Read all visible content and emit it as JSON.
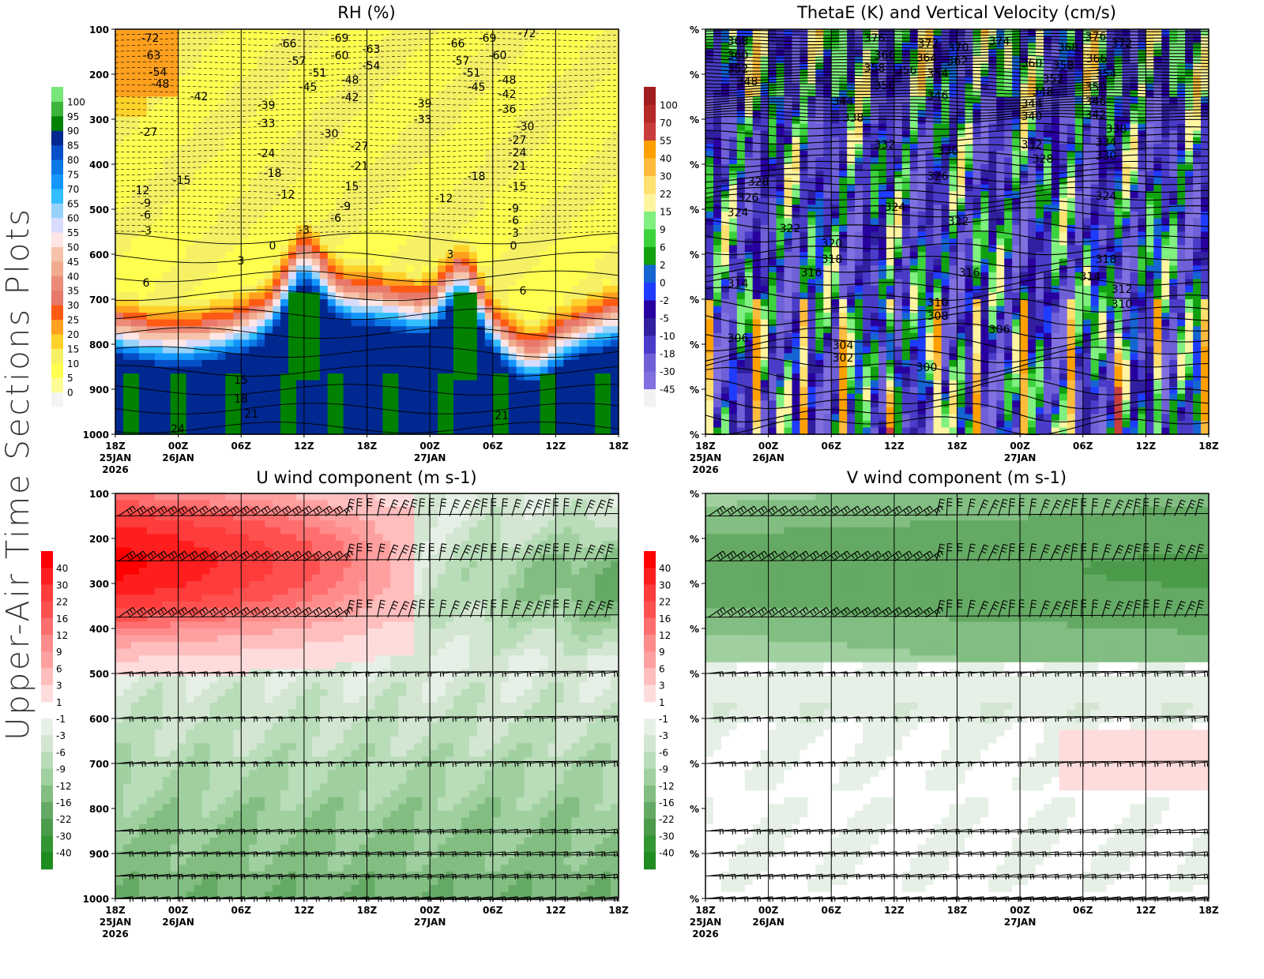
{
  "side_title": "Upper-Air Time Sections Plots",
  "time_ticks": [
    [
      "18Z",
      "25JAN",
      "2026"
    ],
    [
      "00Z",
      "26JAN"
    ],
    [
      "06Z"
    ],
    [
      "12Z"
    ],
    [
      "18Z"
    ],
    [
      "00Z",
      "27JAN"
    ],
    [
      "06Z"
    ],
    [
      "12Z"
    ],
    [
      "18Z"
    ]
  ],
  "chart_data": [
    {
      "type": "heatmap",
      "title": "RH (%)",
      "ylim": [
        100,
        1000
      ],
      "yticks": [
        "100",
        "200",
        "300",
        "400",
        "500",
        "600",
        "700",
        "800",
        "900",
        "1000"
      ],
      "colorbar_levels": [
        "0",
        "5",
        "10",
        "15",
        "20",
        "25",
        "30",
        "35",
        "40",
        "45",
        "50",
        "55",
        "60",
        "65",
        "70",
        "75",
        "80",
        "85",
        "90",
        "95",
        "100"
      ],
      "colorbar_colors": [
        "#f4f4f4",
        "#fdfd96",
        "#ffff50",
        "#f5f064",
        "#ffd22a",
        "#ffa01e",
        "#ff5a14",
        "#e8786a",
        "#ec8c78",
        "#f0aa8c",
        "#f5c3aa",
        "#ffe6e6",
        "#d7dcff",
        "#96d2fa",
        "#32beff",
        "#1496ff",
        "#0a78e6",
        "#0550c8",
        "#002890",
        "#008200",
        "#3cb43c",
        "#78e678"
      ],
      "contour_labels": [
        "-72",
        "-63",
        "-54",
        "-48",
        "-42",
        "-27",
        "-15",
        "-12",
        "-9",
        "-6",
        "-3",
        "0",
        "3",
        "6",
        "15",
        "18",
        "21",
        "24",
        "-66",
        "-57",
        "-51",
        "-45",
        "-39",
        "-33",
        "-24",
        "-18",
        "-12",
        "-3",
        "-69",
        "-60",
        "-48",
        "-42",
        "-30",
        "-27",
        "-21",
        "-15",
        "-9",
        "-6",
        "-63",
        "-54",
        "-39",
        "-33",
        "-12",
        "3",
        "-66",
        "-57",
        "-51",
        "-45",
        "-69",
        "-60",
        "-48",
        "-42",
        "-36",
        "-30",
        "-27",
        "-24",
        "-21",
        "-18",
        "-15",
        "-9",
        "-6",
        "-3",
        "0",
        "6",
        "21",
        "-72"
      ]
    },
    {
      "type": "heatmap",
      "title": "ThetaE (K) and Vertical Velocity (cm/s)",
      "ylim": [
        100,
        1000
      ],
      "yticks": [
        "%",
        "%",
        "%",
        "%",
        "%",
        "%",
        "%",
        "%",
        "%",
        "%"
      ],
      "colorbar_levels": [
        "-45",
        "-30",
        "-18",
        "-10",
        "-5",
        "-2",
        "0",
        "2",
        "6",
        "9",
        "15",
        "22",
        "30",
        "40",
        "55",
        "70",
        "100"
      ],
      "colorbar_colors": [
        "#f2f2f2",
        "#8070e0",
        "#7060d8",
        "#4a3cc8",
        "#3020a0",
        "#2800a0",
        "#1e3cff",
        "#1464d2",
        "#10a010",
        "#3cd23c",
        "#80f080",
        "#fff5a0",
        "#ffe070",
        "#ffbb3c",
        "#ffa000",
        "#c83c3c",
        "#b42828",
        "#a01e1e"
      ],
      "contour_labels": [
        "368",
        "360",
        "352",
        "348",
        "376",
        "366",
        "358",
        "356",
        "350",
        "372",
        "370",
        "364",
        "362",
        "354",
        "346",
        "374",
        "344",
        "338",
        "332",
        "330",
        "326",
        "324",
        "322",
        "328",
        "326",
        "324",
        "322",
        "320",
        "318",
        "316",
        "314",
        "316",
        "310",
        "308",
        "306",
        "306",
        "304",
        "302",
        "300",
        "360",
        "348",
        "344",
        "340",
        "352",
        "358",
        "368",
        "366",
        "376",
        "372",
        "354",
        "350",
        "346",
        "342",
        "338",
        "334",
        "330",
        "332",
        "328",
        "324",
        "318",
        "314",
        "312",
        "310"
      ]
    },
    {
      "type": "heatmap",
      "title": "U wind component (m s-1)",
      "ylim": [
        100,
        1000
      ],
      "yticks": [
        "100",
        "200",
        "300",
        "400",
        "500",
        "600",
        "700",
        "800",
        "900",
        "1000"
      ],
      "colorbar_levels": [
        "40",
        "30",
        "22",
        "16",
        "12",
        "9",
        "6",
        "3",
        "1",
        "-1",
        "-3",
        "-6",
        "-9",
        "-12",
        "-16",
        "-22",
        "-30",
        "-40"
      ],
      "colorbar_colors_red": [
        "#ff0000",
        "#ff1e1e",
        "#ff3c3c",
        "#ff5050",
        "#ff6e6e",
        "#ff8c8c",
        "#ffa0a0",
        "#ffbebe",
        "#ffdcdc"
      ],
      "colorbar_colors_green": [
        "#e6f0e6",
        "#d2e6d2",
        "#b9dcb9",
        "#a0d0a0",
        "#82be82",
        "#64aa64",
        "#4b9b4b",
        "#329632",
        "#1e8c1e"
      ],
      "barb_levels": [
        150,
        250,
        375,
        500,
        600,
        700,
        850,
        900,
        950,
        1000
      ]
    },
    {
      "type": "heatmap",
      "title": "V wind component (m s-1)",
      "ylim": [
        100,
        1000
      ],
      "yticks": [
        "%",
        "%",
        "%",
        "%",
        "%",
        "%",
        "%",
        "%",
        "%",
        "%"
      ],
      "colorbar_levels": [
        "40",
        "30",
        "22",
        "16",
        "12",
        "9",
        "6",
        "3",
        "1",
        "-1",
        "-3",
        "-6",
        "-9",
        "-12",
        "-16",
        "-22",
        "-30",
        "-40"
      ],
      "colorbar_colors_red": [
        "#ff0000",
        "#ff1e1e",
        "#ff3c3c",
        "#ff5050",
        "#ff6e6e",
        "#ff8c8c",
        "#ffa0a0",
        "#ffbebe",
        "#ffdcdc"
      ],
      "colorbar_colors_green": [
        "#e6f0e6",
        "#d2e6d2",
        "#b9dcb9",
        "#a0d0a0",
        "#82be82",
        "#64aa64",
        "#4b9b4b",
        "#329632",
        "#1e8c1e"
      ],
      "barb_levels": [
        150,
        250,
        375,
        500,
        600,
        700,
        850,
        900,
        950,
        1000
      ]
    }
  ]
}
